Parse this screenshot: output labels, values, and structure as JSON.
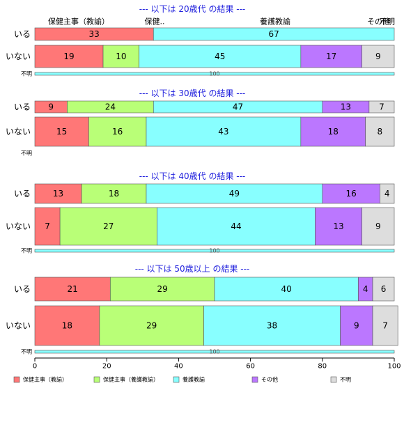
{
  "chart_data": {
    "type": "bar",
    "orientation": "horizontal",
    "stacked": true,
    "xlim": [
      0,
      100
    ],
    "xticks": [
      "0",
      "20",
      "40",
      "60",
      "80",
      "100"
    ],
    "legend": [
      {
        "name": "保健主事（教諭）",
        "color": "#ff7777"
      },
      {
        "name": "保健主事（養護教諭）",
        "color": "#b9ff77"
      },
      {
        "name": "養護教諭",
        "color": "#88ffff"
      },
      {
        "name": "その他",
        "color": "#bb77ff"
      },
      {
        "name": "不明",
        "color": "#dddddd"
      }
    ],
    "legend_position": "bottom",
    "column_header_labels": [
      "保健主事（教諭）",
      "保健..",
      "養護教諭",
      "その他",
      "不明"
    ],
    "panels": [
      {
        "title": "--- 以下は 20歳代 の結果 ---",
        "rows": [
          {
            "label": "いる",
            "values": [
              33,
              0,
              67,
              0,
              0
            ],
            "value_labels": [
              "33",
              "",
              "67",
              "",
              ""
            ]
          },
          {
            "label": "いない",
            "values": [
              19,
              10,
              45,
              17,
              9
            ],
            "value_labels": [
              "19",
              "10",
              "45",
              "17",
              "9"
            ]
          },
          {
            "label": "不明",
            "values": [
              0,
              0,
              100,
              0,
              0
            ],
            "value_labels": [
              "",
              "",
              "100",
              "",
              ""
            ]
          }
        ]
      },
      {
        "title": "--- 以下は 30歳代 の結果 ---",
        "rows": [
          {
            "label": "いる",
            "values": [
              9,
              24,
              47,
              13,
              7
            ],
            "value_labels": [
              "9",
              "24",
              "47",
              "13",
              "7"
            ]
          },
          {
            "label": "いない",
            "values": [
              15,
              16,
              43,
              18,
              8
            ],
            "value_labels": [
              "15",
              "16",
              "43",
              "18",
              "8"
            ]
          },
          {
            "label": "不明",
            "values": [
              0,
              0,
              0,
              0,
              0
            ],
            "value_labels": [
              "",
              "",
              "",
              "",
              ""
            ]
          }
        ]
      },
      {
        "title": "--- 以下は 40歳代 の結果 ---",
        "rows": [
          {
            "label": "いる",
            "values": [
              13,
              18,
              49,
              16,
              4
            ],
            "value_labels": [
              "13",
              "18",
              "49",
              "16",
              "4"
            ]
          },
          {
            "label": "いない",
            "values": [
              7,
              27,
              44,
              13,
              9
            ],
            "value_labels": [
              "7",
              "27",
              "44",
              "13",
              "9"
            ]
          },
          {
            "label": "不明",
            "values": [
              0,
              0,
              100,
              0,
              0
            ],
            "value_labels": [
              "",
              "",
              "100",
              "",
              ""
            ]
          }
        ]
      },
      {
        "title": "--- 以下は 50歳以上 の結果 ---",
        "rows": [
          {
            "label": "いる",
            "values": [
              21,
              29,
              40,
              4,
              6
            ],
            "value_labels": [
              "21",
              "29",
              "40",
              "4",
              "6"
            ]
          },
          {
            "label": "いない",
            "values": [
              18,
              29,
              38,
              9,
              7
            ],
            "value_labels": [
              "18",
              "29",
              "38",
              "9",
              "7"
            ]
          },
          {
            "label": "不明",
            "values": [
              0,
              0,
              100,
              0,
              0
            ],
            "value_labels": [
              "",
              "",
              "100",
              "",
              ""
            ]
          }
        ]
      }
    ]
  }
}
